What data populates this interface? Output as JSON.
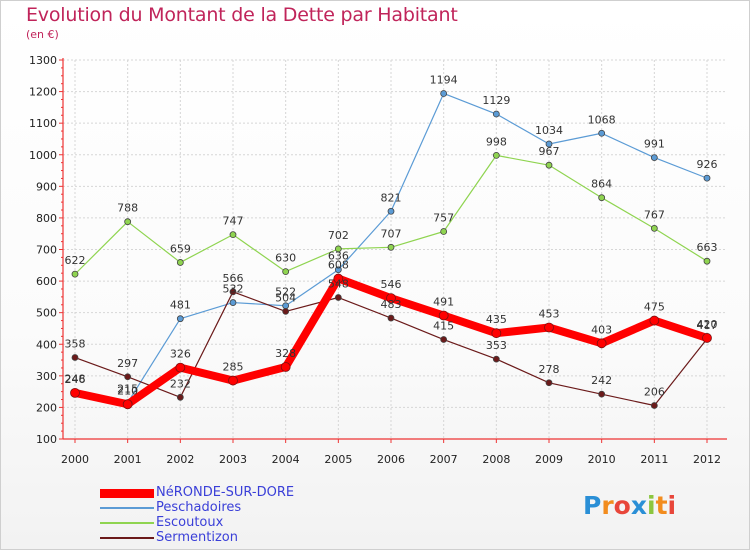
{
  "header": {
    "title": "Evolution du Montant de la Dette par Habitant",
    "subtitle": "(en €)"
  },
  "logo": {
    "text": "Proxiti"
  },
  "chart_data": {
    "type": "line",
    "title": "Evolution du Montant de la Dette par Habitant",
    "subtitle": "(en €)",
    "xlabel": "",
    "ylabel": "",
    "x": [
      2000,
      2001,
      2002,
      2003,
      2004,
      2005,
      2006,
      2007,
      2008,
      2009,
      2010,
      2011,
      2012
    ],
    "ylim": [
      100,
      1300
    ],
    "yticks": [
      100,
      200,
      300,
      400,
      500,
      600,
      700,
      800,
      900,
      1000,
      1100,
      1200,
      1300
    ],
    "grid": true,
    "legend_position": "bottom-left",
    "series": [
      {
        "name": "NéRONDE-SUR-DORE",
        "color": "#ff0000",
        "emphasis": true,
        "values": [
          246,
          210,
          326,
          285,
          328,
          608,
          546,
          491,
          435,
          453,
          403,
          475,
          420
        ]
      },
      {
        "name": "Peschadoires",
        "color": "#5b9bd5",
        "values": [
          248,
          215,
          481,
          532,
          522,
          636,
          821,
          1194,
          1129,
          1034,
          1068,
          991,
          926
        ]
      },
      {
        "name": "Escoutoux",
        "color": "#8fd450",
        "values": [
          622,
          788,
          659,
          747,
          630,
          702,
          707,
          757,
          998,
          967,
          864,
          767,
          663
        ]
      },
      {
        "name": "Sermentizon",
        "color": "#6b1a1a",
        "values": [
          358,
          297,
          232,
          566,
          504,
          548,
          483,
          415,
          353,
          278,
          242,
          206,
          417
        ]
      }
    ]
  }
}
